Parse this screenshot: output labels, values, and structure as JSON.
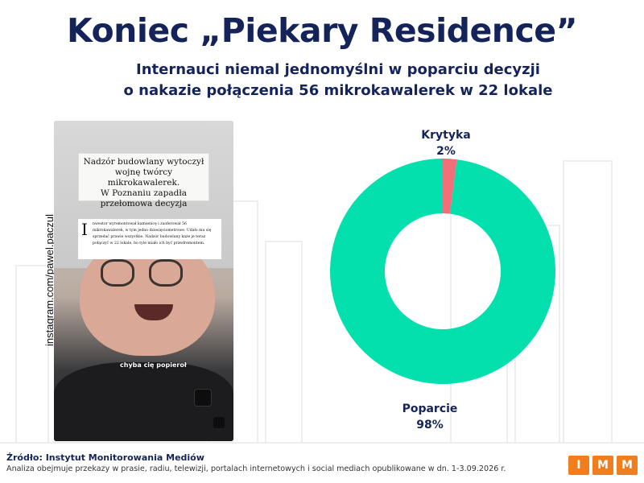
{
  "title": "Koniec „Piekary Residence”",
  "subtitle": "Internauci niemal jednomyślni w poparciu decyzji\no nakazie połączenia 56 mikrokawalerek w 22 lokale",
  "photo": {
    "handle": "instagram.com/pawel.paczul",
    "headline": "Nadzór budowlany wytoczył\nwojnę twórcy mikrokawalerek.\nW Poznaniu zapadła\nprzełomowa decyzja",
    "article_dropcap": "I",
    "article_text": "nwestor wyremontował kamienicę i zaoferował 56 mikrokawalerek, w tym jedno dziesięciometrowe. Udało mu się sprzedać prawie wszystkie. Nadzór budowlany każe je teraz połączyć w 22 lokale, bo tyle miało ich być przedremontem.",
    "caption": "chyba cię popieroł"
  },
  "chart_data": {
    "type": "pie",
    "donut": true,
    "slices": [
      {
        "label": "Krytyka",
        "value": 2,
        "display": "2%",
        "color": "#f0707a"
      },
      {
        "label": "Poparcie",
        "value": 98,
        "display": "98%",
        "color": "#04dfae"
      }
    ]
  },
  "footer": {
    "source": "Źródło: Instytut Monitorowania Mediów",
    "note": "Analiza obejmuje przekazy w prasie, radiu, telewizji, portalach internetowych i social mediach opublikowane w dn. 1-3.09.2026 r.",
    "logo_letters": [
      "I",
      "M",
      "M"
    ]
  }
}
